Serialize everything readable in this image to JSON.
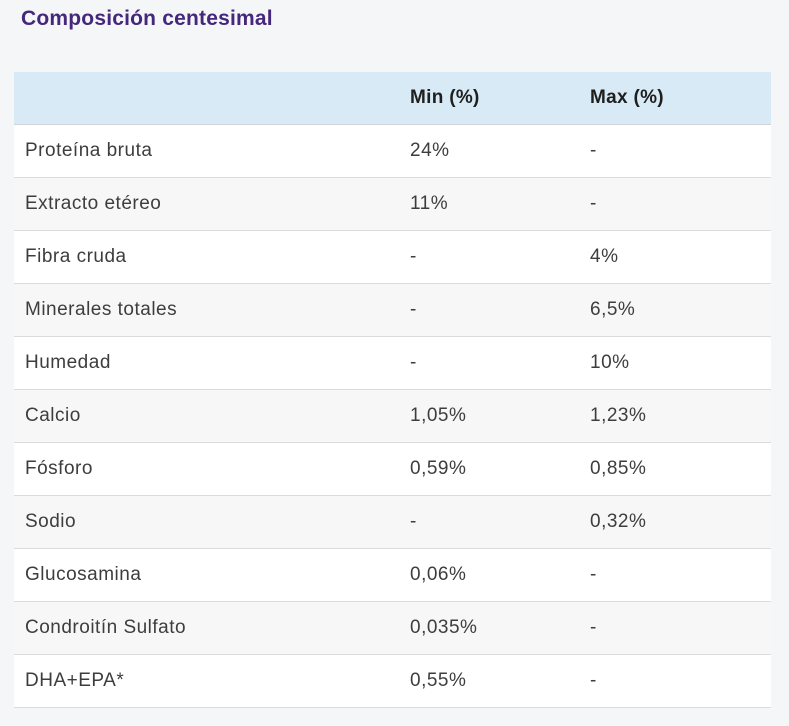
{
  "page": {
    "title": "Composición centesimal"
  },
  "table": {
    "header": {
      "label": "",
      "min": "Min (%)",
      "max": "Max (%)"
    },
    "rows": [
      {
        "label": "Proteína bruta",
        "min": "24%",
        "max": "-"
      },
      {
        "label": "Extracto etéreo",
        "min": "11%",
        "max": "-"
      },
      {
        "label": "Fibra cruda",
        "min": "-",
        "max": "4%"
      },
      {
        "label": "Minerales totales",
        "min": "-",
        "max": "6,5%"
      },
      {
        "label": "Humedad",
        "min": "-",
        "max": "10%"
      },
      {
        "label": "Calcio",
        "min": "1,05%",
        "max": "1,23%"
      },
      {
        "label": "Fósforo",
        "min": "0,59%",
        "max": "0,85%"
      },
      {
        "label": "Sodio",
        "min": "-",
        "max": "0,32%"
      },
      {
        "label": "Glucosamina",
        "min": "0,06%",
        "max": "-"
      },
      {
        "label": "Condroitín Sulfato",
        "min": "0,035%",
        "max": "-"
      },
      {
        "label": "DHA+EPA*",
        "min": "0,55%",
        "max": "-"
      }
    ]
  },
  "colors": {
    "title_purple": "#45277b",
    "header_bg": "#d8eaf5",
    "page_bg": "#f5f6f7",
    "row_bg": "#ffffff",
    "row_alt_bg": "#f7f7f7",
    "divider": "#dbdbdb",
    "text": "#3d3d3d"
  }
}
